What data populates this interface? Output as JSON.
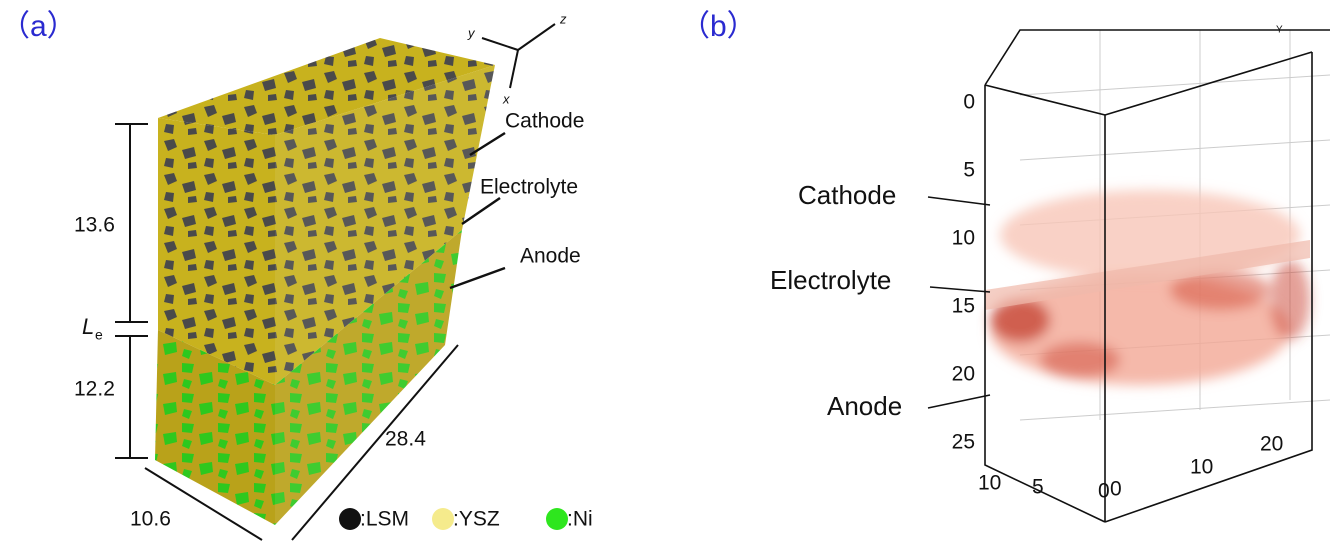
{
  "panel_a": {
    "label": "（a）",
    "axes": {
      "y": "y",
      "z": "z",
      "x": "x"
    },
    "dimensions": {
      "cathode": "13.6",
      "electrolyte": "L",
      "electrolyte_sub": "e",
      "anode": "12.2",
      "width": "10.6",
      "depth": "28.4"
    },
    "layers": [
      "Cathode",
      "Electrolyte",
      "Anode"
    ],
    "legend": [
      ":LSM",
      ":YSZ",
      ":Ni"
    ]
  },
  "panel_b": {
    "label": "（b）",
    "axis_label": "Y",
    "layers": [
      "Cathode",
      "Electrolyte",
      "Anode"
    ],
    "depth_ticks": [
      "0",
      "5",
      "10",
      "15",
      "20",
      "25"
    ],
    "bottom_ticks": [
      "10",
      "5",
      "0",
      "0",
      "10",
      "20"
    ]
  }
}
